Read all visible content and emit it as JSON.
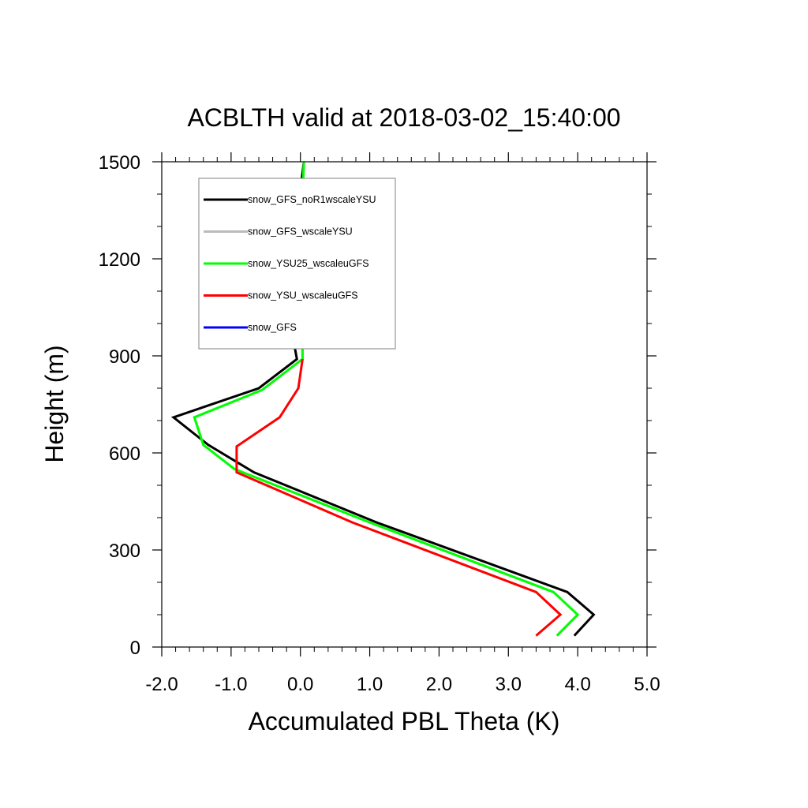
{
  "chart_data": {
    "type": "line",
    "title": "ACBLTH valid at 2018-03-02_15:40:00",
    "xlabel": "Accumulated PBL Theta (K)",
    "ylabel": "Height (m)",
    "xlim": [
      -2.0,
      5.0
    ],
    "ylim": [
      0,
      1500
    ],
    "x_ticks": [
      "-2.0",
      "-1.0",
      "0.0",
      "1.0",
      "2.0",
      "3.0",
      "4.0",
      "5.0"
    ],
    "y_ticks": [
      "0",
      "300",
      "600",
      "900",
      "1200",
      "1500"
    ],
    "grid": false,
    "legend_position": "top-left",
    "series": [
      {
        "name": "snow_GFS_noR1wscaleYSU",
        "color": "#000000",
        "points": [
          [
            3.95,
            35
          ],
          [
            4.23,
            100
          ],
          [
            3.85,
            170
          ],
          [
            1.1,
            385
          ],
          [
            -0.67,
            540
          ],
          [
            -1.33,
            625
          ],
          [
            -1.83,
            710
          ],
          [
            -0.6,
            800
          ],
          [
            -0.05,
            890
          ],
          [
            -0.12,
            970
          ],
          [
            -0.02,
            1200
          ],
          [
            -0.02,
            1380
          ],
          [
            0.05,
            1500
          ]
        ]
      },
      {
        "name": "snow_GFS_wscaleYSU",
        "color": "#bbbbbb",
        "points": [
          [
            3.7,
            35
          ],
          [
            4.0,
            100
          ],
          [
            3.65,
            170
          ],
          [
            1.0,
            385
          ],
          [
            -0.95,
            550
          ],
          [
            -1.4,
            625
          ],
          [
            -1.53,
            710
          ],
          [
            -0.55,
            795
          ],
          [
            0.03,
            890
          ],
          [
            0.03,
            1200
          ],
          [
            0.03,
            1380
          ],
          [
            0.05,
            1500
          ]
        ]
      },
      {
        "name": "snow_YSU25_wscaleuGFS",
        "color": "#00ff00",
        "points": [
          [
            3.7,
            35
          ],
          [
            4.0,
            100
          ],
          [
            3.65,
            170
          ],
          [
            1.0,
            385
          ],
          [
            -0.95,
            550
          ],
          [
            -1.4,
            625
          ],
          [
            -1.53,
            710
          ],
          [
            -0.55,
            795
          ],
          [
            0.03,
            890
          ],
          [
            0.03,
            1200
          ],
          [
            0.03,
            1380
          ],
          [
            0.05,
            1500
          ]
        ]
      },
      {
        "name": "snow_YSU_wscaleuGFS",
        "color": "#ff0000",
        "points": [
          [
            3.4,
            35
          ],
          [
            3.75,
            100
          ],
          [
            3.4,
            170
          ],
          [
            0.75,
            385
          ],
          [
            -0.92,
            540
          ],
          [
            -0.92,
            620
          ],
          [
            -0.3,
            710
          ],
          [
            -0.03,
            800
          ],
          [
            0.03,
            890
          ]
        ]
      },
      {
        "name": "snow_GFS",
        "color": "#0000ff",
        "points": []
      }
    ]
  }
}
